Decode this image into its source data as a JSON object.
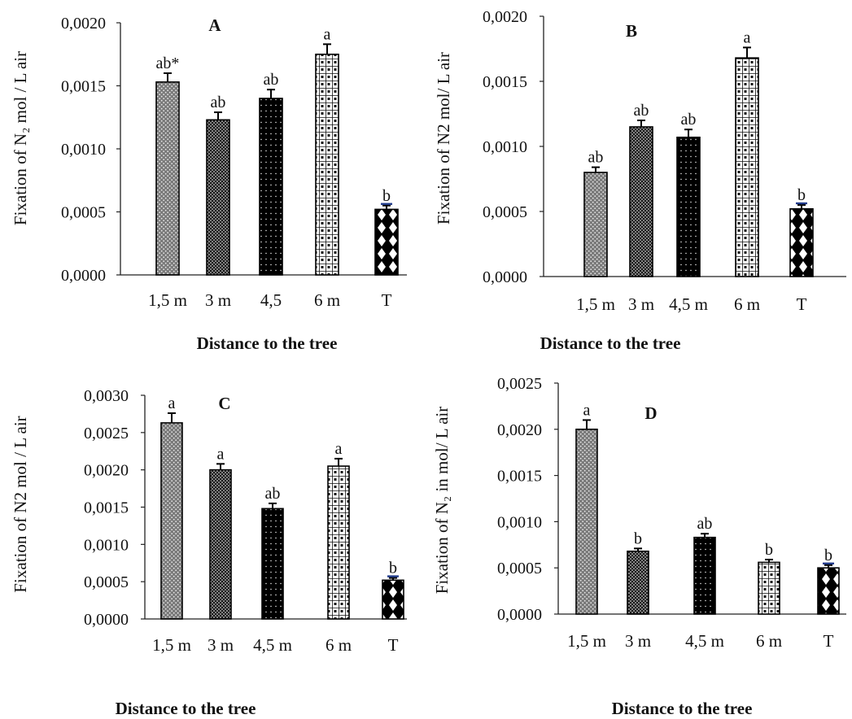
{
  "chart_data": [
    {
      "type": "bar",
      "panel_label": "A",
      "categories": [
        "1,5 m",
        "3 m",
        "4,5",
        "6 m",
        "T"
      ],
      "values": [
        0.00153,
        0.00123,
        0.0014,
        0.00175,
        0.00052
      ],
      "errors": [
        7e-05,
        6e-05,
        7e-05,
        8e-05,
        3e-05
      ],
      "letters": [
        "ab*",
        "ab",
        "ab",
        "a",
        "b"
      ],
      "ylabel": "Fixation of N₂ mol / L air",
      "xlabel": "Distance to the tree",
      "yticks": [
        "0,0000",
        "0,0005",
        "0,0010",
        "0,0015",
        "0,0020"
      ],
      "ylim": [
        0,
        0.002
      ],
      "grid": false
    },
    {
      "type": "bar",
      "panel_label": "B",
      "categories": [
        "1,5 m",
        "3 m",
        "4,5 m",
        "6 m",
        "T"
      ],
      "values": [
        0.0008,
        0.00115,
        0.00107,
        0.00168,
        0.00052
      ],
      "errors": [
        4e-05,
        5e-05,
        6e-05,
        8e-05,
        3e-05
      ],
      "letters": [
        "ab",
        "ab",
        "ab",
        "a",
        "b"
      ],
      "ylabel": "Fixation of N2 mol/ L air",
      "xlabel": "Distance to the tree",
      "yticks": [
        "0,0000",
        "0,0005",
        "0,0010",
        "0,0015",
        "0,0020"
      ],
      "ylim": [
        0,
        0.002
      ],
      "grid": false
    },
    {
      "type": "bar",
      "panel_label": "C",
      "categories": [
        "1,5 m",
        "3 m",
        "4,5 m",
        "6 m",
        "T"
      ],
      "values": [
        0.00263,
        0.002,
        0.00148,
        0.00205,
        0.00052
      ],
      "errors": [
        0.00013,
        8e-05,
        7e-05,
        0.0001,
        3e-05
      ],
      "letters": [
        "a",
        "a",
        "ab",
        "a",
        "b"
      ],
      "ylabel": "Fixation of N2 mol / L air",
      "xlabel": "Distance to the tree",
      "yticks": [
        "0,0000",
        "0,0005",
        "0,0010",
        "0,0015",
        "0,0020",
        "0,0025",
        "0,0030"
      ],
      "ylim": [
        0,
        0.003
      ],
      "grid": false
    },
    {
      "type": "bar",
      "panel_label": "D",
      "categories": [
        "1,5 m",
        "3 m",
        "4,5 m",
        "6 m",
        "T"
      ],
      "values": [
        0.002,
        0.00068,
        0.00083,
        0.00056,
        0.0005
      ],
      "errors": [
        0.0001,
        3e-05,
        4e-05,
        3e-05,
        3e-05
      ],
      "letters": [
        "a",
        "b",
        "ab",
        "b",
        "b"
      ],
      "ylabel": "Fixation of N₂ in mol/ L air",
      "xlabel": "Distance to the tree",
      "yticks": [
        "0,0000",
        "0,0005",
        "0,0010",
        "0,0015",
        "0,0020",
        "0,0025"
      ],
      "ylim": [
        0,
        0.0025
      ],
      "grid": false
    }
  ],
  "colors": {
    "axis": "#222222",
    "bar_dark": "#111111",
    "error_underline_T": "#1f3a8a"
  },
  "patterns": [
    "gray-dots",
    "fine-dots",
    "black-dots",
    "white-squares",
    "black-diamonds"
  ]
}
